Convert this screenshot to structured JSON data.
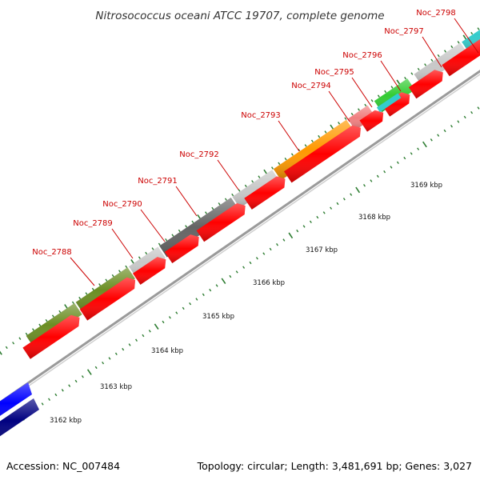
{
  "title": "Nitrosococcus oceani ATCC 19707, complete genome",
  "accession_text": "Accession: NC_007484",
  "summary_text": "Topology: circular; Length: 3,481,691 bp; Genes: 3,027",
  "colors": {
    "label": "#cc0000",
    "backbone": "#8c8c8c",
    "cds": "#ff0000",
    "olive": "#6b8e23",
    "light_gray": "#c8c8c8",
    "dark_gray": "#646464",
    "orange": "#ff9900",
    "pink": "#f08080",
    "green": "#33cc33",
    "cyan": "#33cccc",
    "blue": "#0000ff",
    "navy": "#000080",
    "tick": "#2e7d32"
  },
  "kbp_labels": [
    "3162 kbp",
    "3163 kbp",
    "3164 kbp",
    "3165 kbp",
    "3166 kbp",
    "3167 kbp",
    "3168 kbp",
    "3169 kbp"
  ],
  "gene_labels": [
    "Noc_2788",
    "Noc_2789",
    "Noc_2790",
    "Noc_2791",
    "Noc_2792",
    "Noc_2793",
    "Noc_2794",
    "Noc_2795",
    "Noc_2796",
    "Noc_2797",
    "Noc_2798"
  ]
}
